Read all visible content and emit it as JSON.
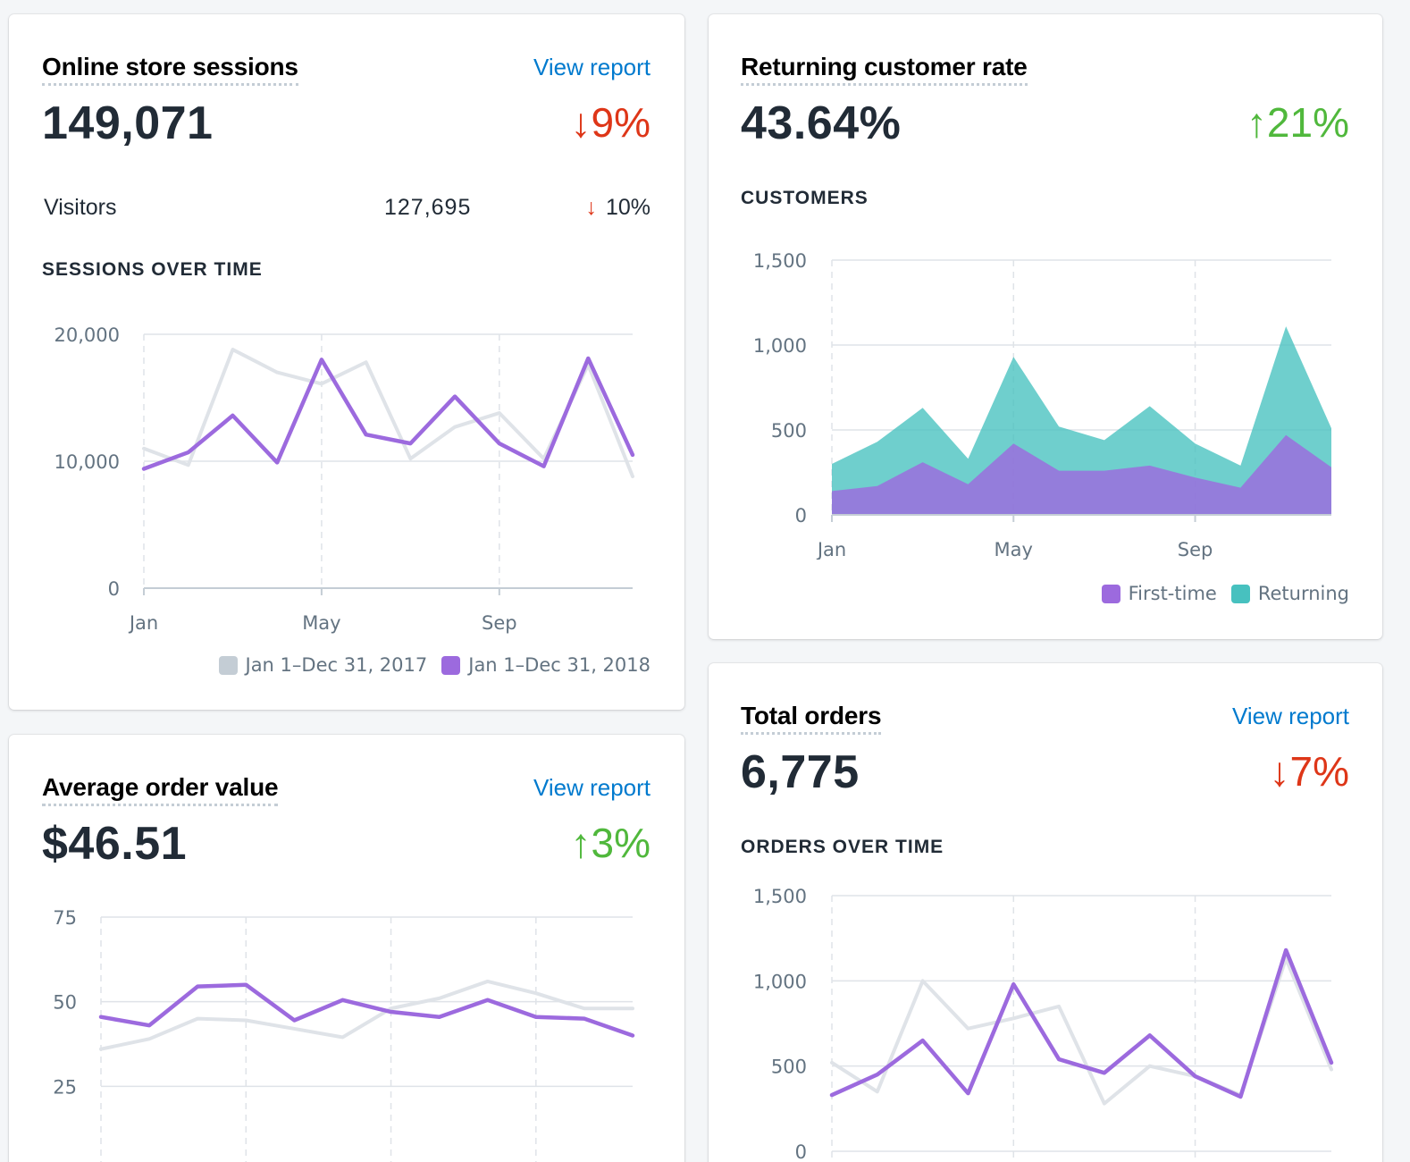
{
  "colors": {
    "purple": "#9c6ade",
    "gray": "#dfe3e8",
    "legend_gray": "#c4cdd5",
    "teal": "#47c1bf",
    "link": "#007ace",
    "down": "#de3618",
    "up": "#50b83c"
  },
  "sessions": {
    "title": "Online store sessions",
    "view_report": "View report",
    "value": "149,071",
    "delta": "9%",
    "delta_direction": "down",
    "arrow_icon": "arrow-down-icon",
    "visitors": {
      "label": "Visitors",
      "value": "127,695",
      "delta": "10%"
    },
    "section_label": "SESSIONS OVER TIME",
    "legend": [
      "Jan 1–Dec 31, 2017",
      "Jan 1–Dec 31, 2018"
    ]
  },
  "returning": {
    "title": "Returning customer rate",
    "value": "43.64%",
    "delta": "21%",
    "delta_direction": "up",
    "arrow_icon": "arrow-up-icon",
    "section_label": "CUSTOMERS",
    "legend": [
      "First-time",
      "Returning"
    ]
  },
  "aov": {
    "title": "Average order value",
    "view_report": "View report",
    "value": "$46.51",
    "delta": "3%",
    "delta_direction": "up",
    "arrow_icon": "arrow-up-icon"
  },
  "orders": {
    "title": "Total orders",
    "view_report": "View report",
    "value": "6,775",
    "delta": "7%",
    "delta_direction": "down",
    "arrow_icon": "arrow-down-icon",
    "section_label": "ORDERS OVER TIME"
  },
  "chart_data": [
    {
      "id": "sessions",
      "type": "line",
      "title": "SESSIONS OVER TIME",
      "x": [
        1,
        2,
        3,
        4,
        5,
        6,
        7,
        8,
        9,
        10,
        11,
        12
      ],
      "ylim": [
        0,
        20000
      ],
      "yticks": [
        0,
        10000,
        20000
      ],
      "ytick_labels": [
        "0",
        "10,000",
        "20,000"
      ],
      "xticks": [
        1,
        5,
        9
      ],
      "xtick_labels": [
        "Jan",
        "May",
        "Sep"
      ],
      "series": [
        {
          "name": "Jan 1–Dec 31, 2017",
          "color": "#dfe3e8",
          "values": [
            11000,
            9700,
            18800,
            17000,
            16100,
            17800,
            10200,
            12700,
            13800,
            10200,
            17600,
            8800
          ]
        },
        {
          "name": "Jan 1–Dec 31, 2018",
          "color": "#9c6ade",
          "values": [
            9400,
            10700,
            13600,
            9900,
            18000,
            12100,
            11400,
            15100,
            11400,
            9600,
            18100,
            10500
          ]
        }
      ]
    },
    {
      "id": "customers",
      "type": "area",
      "title": "CUSTOMERS",
      "x": [
        1,
        2,
        3,
        4,
        5,
        6,
        7,
        8,
        9,
        10,
        11,
        12
      ],
      "ylim": [
        0,
        1500
      ],
      "yticks": [
        0,
        500,
        1000,
        1500
      ],
      "ytick_labels": [
        "0",
        "500",
        "1,000",
        "1,500"
      ],
      "xticks": [
        1,
        5,
        9
      ],
      "xtick_labels": [
        "Jan",
        "May",
        "Sep"
      ],
      "stacked": true,
      "series": [
        {
          "name": "First-time",
          "color": "#9c6ade",
          "values": [
            140,
            170,
            310,
            180,
            420,
            260,
            260,
            290,
            220,
            160,
            470,
            280
          ]
        },
        {
          "name": "Returning",
          "color": "#47c1bf",
          "values": [
            160,
            260,
            320,
            150,
            510,
            260,
            180,
            350,
            200,
            130,
            640,
            230
          ]
        }
      ]
    },
    {
      "id": "aov",
      "type": "line",
      "title": "",
      "x": [
        1,
        2,
        3,
        4,
        5,
        6,
        7,
        8,
        9,
        10,
        11,
        12
      ],
      "ylim": [
        0,
        75
      ],
      "yticks": [
        25,
        50,
        75
      ],
      "ytick_labels": [
        "25",
        "50",
        "75"
      ],
      "series": [
        {
          "name": "Jan 1–Dec 31, 2017",
          "color": "#dfe3e8",
          "values": [
            36,
            39,
            45,
            44.5,
            42,
            39.5,
            48,
            51,
            56,
            52.5,
            48,
            48
          ]
        },
        {
          "name": "Jan 1–Dec 31, 2018",
          "color": "#9c6ade",
          "values": [
            45.5,
            43,
            54.5,
            55,
            44.5,
            50.5,
            47,
            45.5,
            50.5,
            45.5,
            45,
            40
          ]
        }
      ]
    },
    {
      "id": "orders",
      "type": "line",
      "title": "ORDERS OVER TIME",
      "x": [
        1,
        2,
        3,
        4,
        5,
        6,
        7,
        8,
        9,
        10,
        11,
        12
      ],
      "ylim": [
        0,
        1500
      ],
      "yticks": [
        0,
        500,
        1000,
        1500
      ],
      "ytick_labels": [
        "0",
        "500",
        "1,000",
        "1,500"
      ],
      "series": [
        {
          "name": "Jan 1–Dec 31, 2017",
          "color": "#dfe3e8",
          "values": [
            520,
            350,
            1000,
            720,
            780,
            850,
            280,
            500,
            440,
            330,
            1130,
            480
          ]
        },
        {
          "name": "Jan 1–Dec 31, 2018",
          "color": "#9c6ade",
          "values": [
            330,
            450,
            650,
            340,
            980,
            540,
            460,
            680,
            440,
            320,
            1180,
            520
          ]
        }
      ]
    }
  ]
}
